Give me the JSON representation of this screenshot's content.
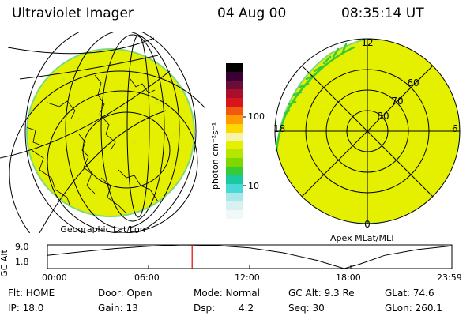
{
  "header": {
    "title": "Ultraviolet Imager",
    "date": "04 Aug 00",
    "time": "08:35:14 UT"
  },
  "left_panel": {
    "caption": "Geographic Lat/Lon"
  },
  "right_panel": {
    "caption": "Apex MLat/MLT",
    "mlt_labels": {
      "top": "12",
      "left": "18",
      "right": "6",
      "bottom": "0"
    },
    "lat_labels": [
      "60",
      "70",
      "80"
    ]
  },
  "colorbar": {
    "unit_label": "photon cm⁻²s⁻¹",
    "tick_labels": [
      "100",
      "10"
    ],
    "colors": [
      "#000000",
      "#3a0035",
      "#6a0d3a",
      "#a8102a",
      "#d8141c",
      "#f05a10",
      "#ff9a00",
      "#ffd700",
      "#f4f4aa",
      "#e4f000",
      "#b4e600",
      "#7ed800",
      "#36cc36",
      "#1cc8a0",
      "#48d8d8",
      "#a8e8e8",
      "#d8f0f0",
      "#f0f8f8"
    ]
  },
  "altitude_plot": {
    "ylabel": "GC Alt",
    "y_ticks": [
      "9.0",
      "1.8"
    ],
    "x_ticks": [
      "00:00",
      "06:00",
      "12:00",
      "18:00",
      "23:59"
    ],
    "current_time_hours": 8.587,
    "curve_hours": [
      0,
      2,
      4,
      6,
      8,
      10,
      12,
      14,
      16,
      17.6,
      18.5,
      20,
      22,
      24
    ],
    "curve_alt": [
      5.8,
      6.9,
      7.9,
      8.6,
      9.0,
      8.8,
      8.1,
      6.6,
      4.3,
      1.8,
      3.1,
      5.8,
      7.6,
      8.7
    ],
    "ylim": [
      1.8,
      9.0
    ],
    "xlim": [
      0,
      24
    ]
  },
  "status": {
    "flt": "Flt: HOME",
    "ip": "IP: 18.0",
    "door": "Door: Open",
    "gain": "Gain: 13",
    "mode": "Mode: Normal",
    "dsp_label": "Dsp:",
    "dsp_value": "4.2",
    "gc_alt": "GC Alt: 9.3 Re",
    "seq": "Seq: 30",
    "glat": "GLat:  74.6",
    "glon": "GLon: 260.1"
  },
  "colors": {
    "image_fill": "#e4f000",
    "image_edge": "#7ed87e",
    "aurora": "#36cc36",
    "marker": "#e00000",
    "grid": "#000000"
  }
}
